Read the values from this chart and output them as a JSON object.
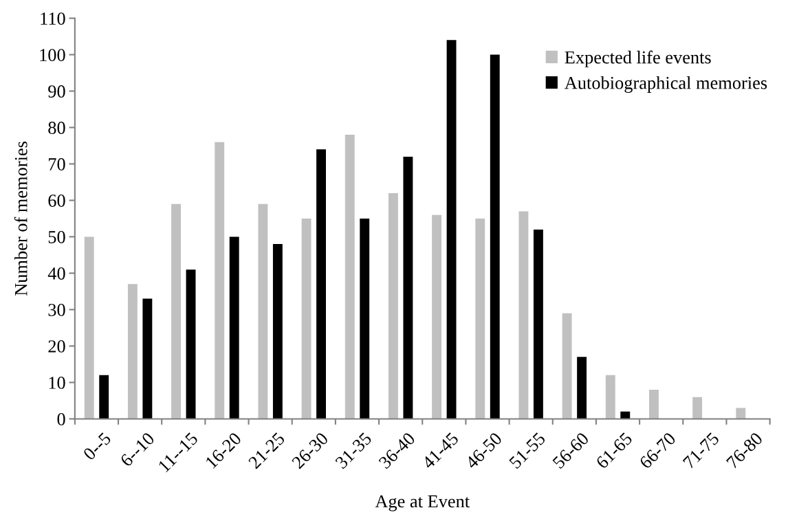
{
  "chart_data": {
    "type": "bar",
    "xlabel": "Age at Event",
    "ylabel": "Number of memories",
    "categories": [
      "0--5",
      "6--10",
      "11--15",
      "16-20",
      "21-25",
      "26-30",
      "31-35",
      "36-40",
      "41-45",
      "46-50",
      "51-55",
      "56-60",
      "61-65",
      "66-70",
      "71-75",
      "76-80"
    ],
    "series": [
      {
        "name": "Expected life events",
        "color": "#c0c0c0",
        "values": [
          50,
          37,
          59,
          76,
          59,
          55,
          78,
          62,
          56,
          55,
          57,
          29,
          12,
          8,
          6,
          3
        ]
      },
      {
        "name": "Autobiographical memories",
        "color": "#000000",
        "values": [
          12,
          33,
          41,
          50,
          48,
          74,
          55,
          72,
          104,
          100,
          52,
          17,
          2,
          0,
          0,
          0
        ]
      }
    ],
    "ylim": [
      0,
      110
    ],
    "yticks": [
      0,
      10,
      20,
      30,
      40,
      50,
      60,
      70,
      80,
      90,
      100,
      110
    ],
    "grid": false,
    "legend": "top right"
  }
}
